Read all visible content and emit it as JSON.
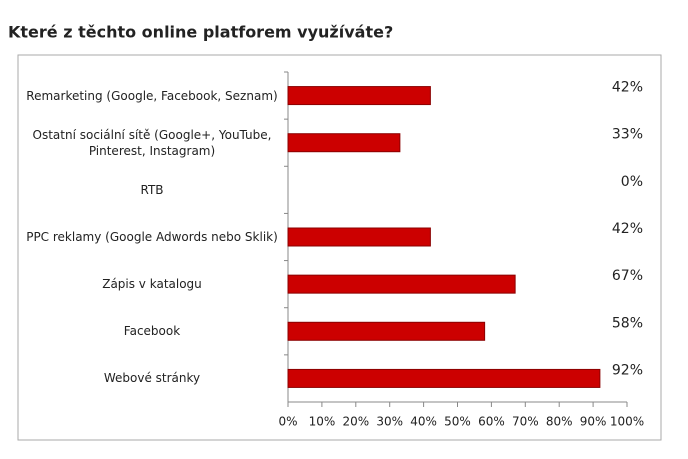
{
  "chart_data": {
    "type": "bar",
    "orientation": "horizontal",
    "title": "Které z těchto online platforem využíváte?",
    "categories": [
      "Remarketing (Google, Facebook, Seznam)",
      "Ostatní sociální sítě (Google+, YouTube, Pinterest, Instagram)",
      "RTB",
      "PPC reklamy (Google Adwords nebo Sklik)",
      "Zápis v katalogu",
      "Facebook",
      "Webové stránky"
    ],
    "values": [
      42,
      33,
      0,
      42,
      67,
      58,
      92
    ],
    "value_labels": [
      "42%",
      "33%",
      "0%",
      "42%",
      "67%",
      "58%",
      "92%"
    ],
    "color": "#cc0000",
    "xlim": [
      0,
      100
    ],
    "xticks": [
      {
        "value": 0,
        "label": "0%"
      },
      {
        "value": 10,
        "label": "10%"
      },
      {
        "value": 20,
        "label": "20%"
      },
      {
        "value": 30,
        "label": "30%"
      },
      {
        "value": 40,
        "label": "40%"
      },
      {
        "value": 50,
        "label": "50%"
      },
      {
        "value": 60,
        "label": "60%"
      },
      {
        "value": 70,
        "label": "70%"
      },
      {
        "value": 80,
        "label": "80%"
      },
      {
        "value": 90,
        "label": "90%"
      },
      {
        "value": 100,
        "label": "100%"
      }
    ],
    "grid": false
  }
}
